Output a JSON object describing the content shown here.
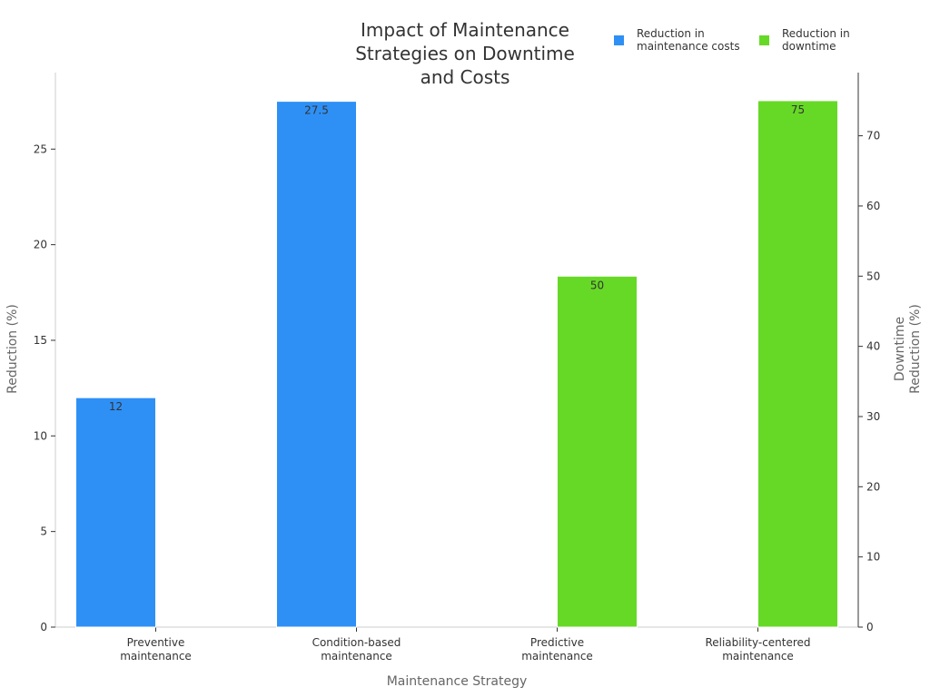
{
  "chart_data": {
    "type": "bar",
    "title": "Impact of Maintenance Strategies on Downtime and Costs",
    "title_lines": [
      "Impact of Maintenance",
      "Strategies on Downtime",
      "and Costs"
    ],
    "xlabel": "Maintenance Strategy",
    "ylabel": "Reduction (%)",
    "y2label": "Downtime Reduction (%)",
    "y2label_lines": [
      "Downtime",
      "Reduction (%)"
    ],
    "categories": [
      "Preventive maintenance",
      "Condition-based maintenance",
      "Predictive maintenance",
      "Reliability-centered maintenance"
    ],
    "category_lines": [
      [
        "Preventive",
        "maintenance"
      ],
      [
        "Condition-based",
        "maintenance"
      ],
      [
        "Predictive",
        "maintenance"
      ],
      [
        "Reliability-centered",
        "maintenance"
      ]
    ],
    "ylim": [
      0,
      29
    ],
    "y2lim": [
      0,
      79
    ],
    "yticks": [
      0,
      5,
      10,
      15,
      20,
      25
    ],
    "y2ticks": [
      0,
      10,
      20,
      30,
      40,
      50,
      60,
      70
    ],
    "grid": false,
    "legend_position": "top-right",
    "series": [
      {
        "name": "Reduction in maintenance costs",
        "name_lines": [
          "Reduction in",
          "maintenance costs"
        ],
        "axis": "left",
        "color": "#2e90f5",
        "values": [
          12,
          27.5,
          null,
          null
        ],
        "labels": [
          "12",
          "27.5",
          "",
          ""
        ]
      },
      {
        "name": "Reduction in downtime",
        "name_lines": [
          "Reduction in",
          "downtime"
        ],
        "axis": "right",
        "color": "#66d926",
        "values": [
          null,
          null,
          50,
          75
        ],
        "labels": [
          "",
          "",
          "50",
          "75"
        ]
      }
    ]
  }
}
